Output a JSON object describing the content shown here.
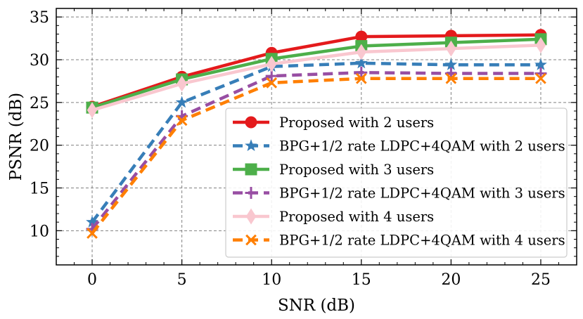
{
  "chart_data": {
    "type": "line",
    "title": "",
    "xlabel": "SNR (dB)",
    "ylabel": "PSNR (dB)",
    "xlim": [
      -2,
      27
    ],
    "ylim": [
      6,
      36
    ],
    "xticks": [
      0,
      5,
      10,
      15,
      20,
      25
    ],
    "yticks": [
      10,
      15,
      20,
      25,
      30,
      35
    ],
    "grid": true,
    "legend_position": "bottom-right",
    "x": [
      0,
      5,
      10,
      15,
      20,
      25
    ],
    "series": [
      {
        "name": "Proposed with 2 users",
        "values": [
          24.5,
          28.0,
          30.8,
          32.7,
          32.8,
          32.9
        ],
        "color": "#e41a1c",
        "linestyle": "solid",
        "marker": "circle"
      },
      {
        "name": "BPG+1/2 rate LDPC+4QAM with 2 users",
        "values": [
          11.0,
          25.0,
          29.2,
          29.6,
          29.4,
          29.4
        ],
        "color": "#377eb8",
        "linestyle": "dashed",
        "marker": "star"
      },
      {
        "name": "Proposed with 3 users",
        "values": [
          24.4,
          27.7,
          30.1,
          31.6,
          32.0,
          32.4
        ],
        "color": "#4daf4a",
        "linestyle": "solid",
        "marker": "square"
      },
      {
        "name": "BPG+1/2 rate LDPC+4QAM with 3 users",
        "values": [
          10.2,
          23.4,
          28.1,
          28.5,
          28.4,
          28.4
        ],
        "color": "#984ea3",
        "linestyle": "dashed",
        "marker": "plus"
      },
      {
        "name": "Proposed with 4 users",
        "values": [
          24.1,
          27.2,
          29.5,
          30.9,
          31.3,
          31.7
        ],
        "color": "#f9c7cf",
        "linestyle": "solid",
        "marker": "diamond"
      },
      {
        "name": "BPG+1/2 rate LDPC+4QAM with 4 users",
        "values": [
          9.7,
          22.9,
          27.3,
          27.8,
          27.8,
          27.8
        ],
        "color": "#ff7f00",
        "linestyle": "dashed",
        "marker": "x"
      }
    ]
  }
}
